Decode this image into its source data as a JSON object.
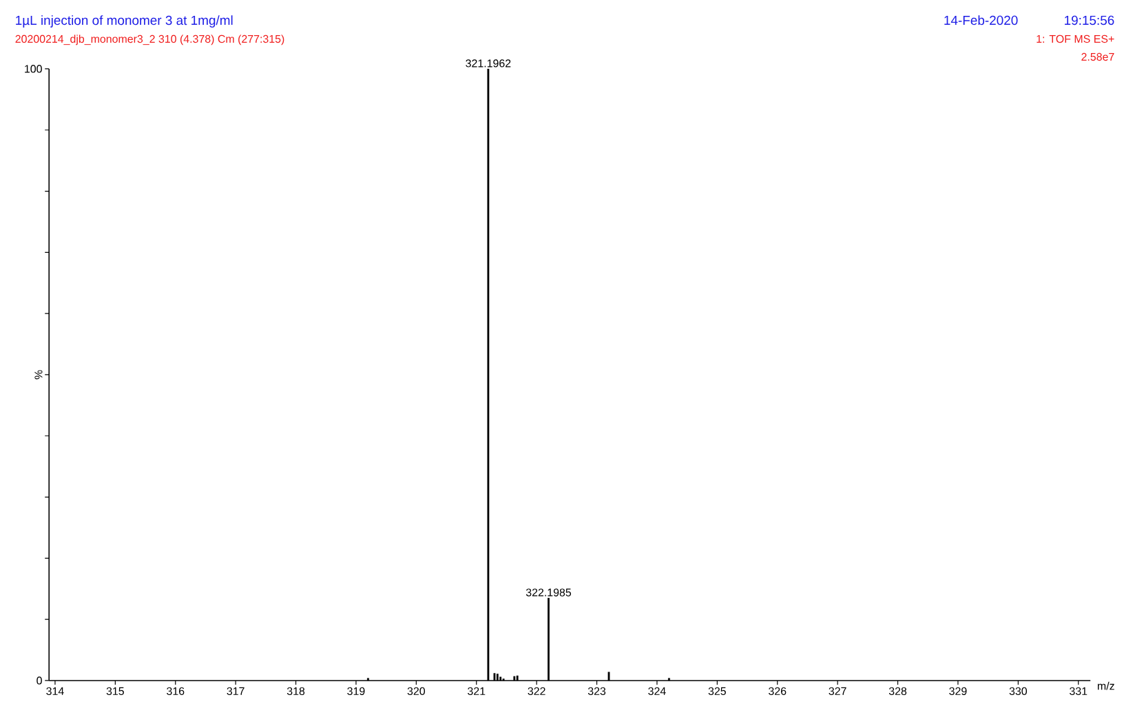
{
  "chart_data": {
    "type": "bar",
    "title": "1µL injection of monomer 3 at 1mg/ml",
    "subtitle": "20200214_djb_monomer3_2 310 (4.378) Cm (277:315)",
    "xlabel": "m/z",
    "ylabel": "%",
    "x": [
      319.2,
      321.1962,
      321.3,
      321.35,
      321.4,
      321.45,
      321.63,
      321.68,
      322.1985,
      322.6,
      323.2,
      324.2
    ],
    "values": [
      0.4,
      100,
      1.2,
      1.1,
      0.6,
      0.3,
      0.7,
      0.8,
      13.5,
      null,
      1.4,
      0.4
    ],
    "color": "#000000",
    "xlim": [
      313.9,
      331.2
    ],
    "ylim": [
      0,
      100
    ],
    "xticks": [
      314,
      315,
      316,
      317,
      318,
      319,
      320,
      321,
      322,
      323,
      324,
      325,
      326,
      327,
      328,
      329,
      330,
      331
    ],
    "yticks": [
      0,
      {
        "value": 10,
        "label": null
      },
      {
        "value": 20,
        "label": null
      },
      {
        "value": 30,
        "label": null
      },
      {
        "value": 40,
        "label": null
      },
      {
        "value": 50,
        "label": null
      },
      {
        "value": 60,
        "label": null
      },
      {
        "value": 70,
        "label": null
      },
      {
        "value": 80,
        "label": null
      },
      {
        "value": 90,
        "label": null
      },
      100
    ],
    "grid": false,
    "annotations": [
      {
        "text": "321.1962",
        "x": 321.1962,
        "y": 100
      },
      {
        "text": "322.1985",
        "x": 322.1985,
        "y": 13.5
      },
      "14-Feb-2020",
      "19:15:56",
      "1: TOF MS ES+",
      "2.58e7"
    ]
  }
}
